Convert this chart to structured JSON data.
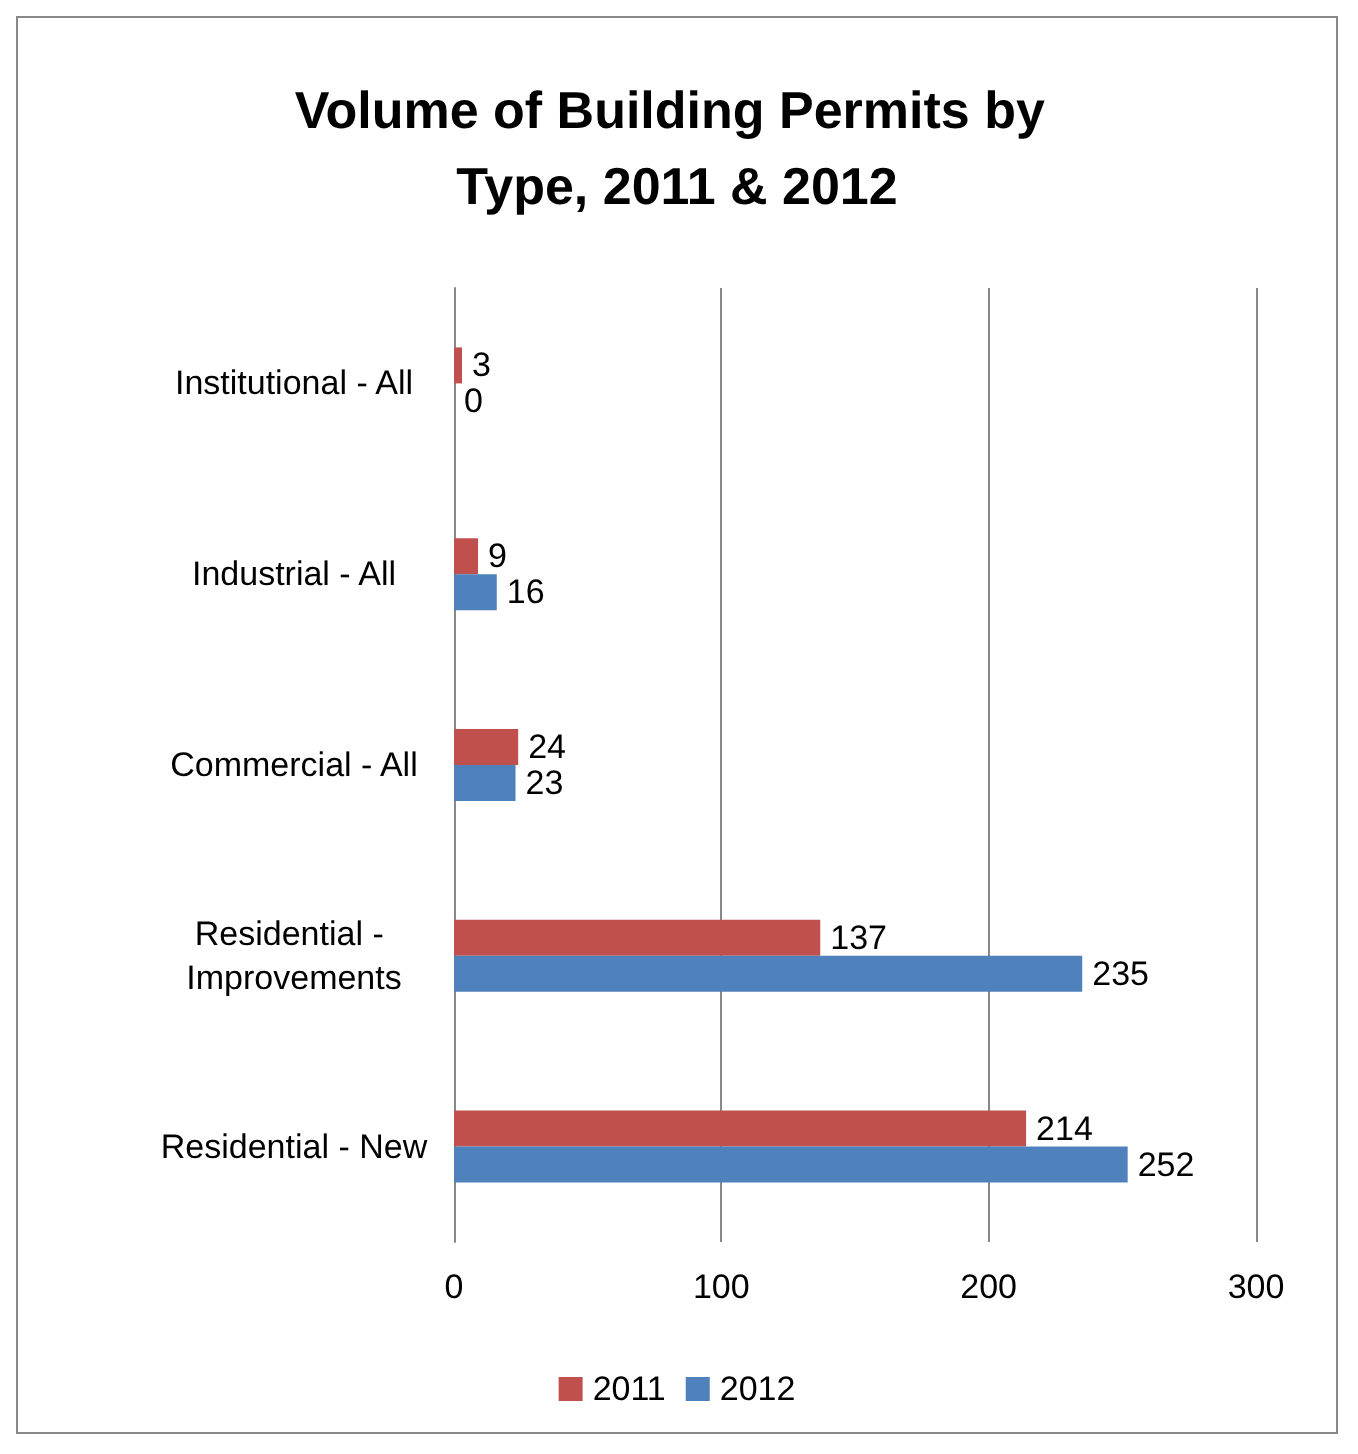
{
  "chart_data": {
    "type": "bar",
    "orientation": "horizontal",
    "title": "Volume of Building Permits by Type, 2011 & 2012",
    "categories": [
      "Institutional - All",
      "Industrial - All",
      "Commercial - All",
      "Residential - Improvements",
      "Residential - New"
    ],
    "series": [
      {
        "name": "2011",
        "color": "#c0504d",
        "values": [
          3,
          9,
          24,
          137,
          214
        ]
      },
      {
        "name": "2012",
        "color": "#4f81bd",
        "values": [
          0,
          16,
          23,
          235,
          252
        ]
      }
    ],
    "xlim": [
      0,
      300
    ],
    "xticks": [
      0,
      100,
      200,
      300
    ],
    "grid": "x",
    "legend": "bottom",
    "data_labels": true
  }
}
